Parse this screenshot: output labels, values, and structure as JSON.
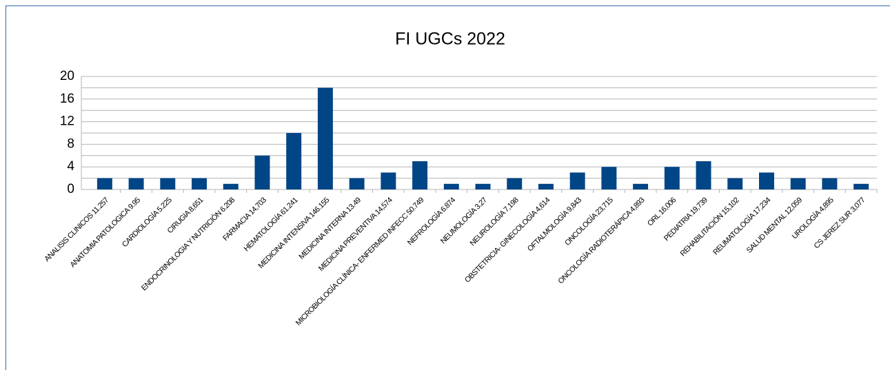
{
  "chart_data": {
    "type": "bar",
    "title": "FI UGCs 2022",
    "categories": [
      "ANALISIS CLINICOS 11.257",
      "ANATOMIA PATOLOGICA 9.95",
      "CARDIOLOGÍA 5.225",
      "CIRUGIA 8,651",
      "ENDOCRINOLOGIA Y NUTRICIÓN 6.208",
      "FARMACIA 14,703",
      "HEMATOLOGÍA 61.241",
      "MEDICINA INTENSIVA 146.155",
      "MEDICINA INTERNA 13.49",
      "MEDICINA PREVENTIVA 14,574",
      "MICROBIOLOGÍA CLÍNICA- ENFERMED INFECC 50.749",
      "NEFROLOGÍA 6.874",
      "NEUMOLOGÍA 3.27",
      "NEUROLOGÍA 7,198",
      "OBSTETRICIA- GINECOLOGÍA 4,614",
      "OFTALMOLOGÍA 9,843",
      "ONCOLOGÍA 23,715",
      "ONCOLOGÍA RADIOTERÁPICA 4,893",
      "ORL 16,006",
      "PEDIATRIA 19,739",
      "REHABILITACIÓN 15,102",
      "REUMATOLOGÍA 17,234",
      "SALUD MENTAL 12,059",
      "UROLOGÍA 4,895",
      "CS JEREZ SUR 3,077"
    ],
    "values": [
      2,
      2,
      2,
      2,
      1,
      6,
      10,
      18,
      2,
      3,
      5,
      1,
      1,
      2,
      1,
      3,
      4,
      1,
      4,
      5,
      2,
      3,
      2,
      2,
      1
    ],
    "color": "#004586",
    "ylim": [
      0,
      20
    ],
    "yticks": [
      0,
      4,
      8,
      12,
      16,
      20
    ],
    "minor_yticks": [
      2,
      6,
      10,
      14,
      18
    ],
    "grid": true
  }
}
